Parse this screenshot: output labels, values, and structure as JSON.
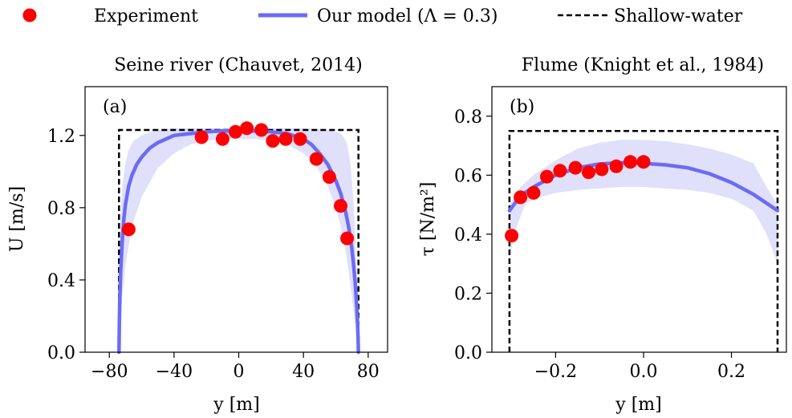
{
  "legend": {
    "experiment": "Experiment",
    "model": "Our model (Λ = 0.3)",
    "shallow": "Shallow-water"
  },
  "colors": {
    "experiment": "#ff0000",
    "model": "#6b6bf7",
    "band": "#e0e0fb",
    "shallow": "#000000"
  },
  "chart_data": [
    {
      "type": "scatter",
      "title": "Seine river (Chauvet, 2014)",
      "panel_label": "(a)",
      "xlabel": "y [m]",
      "ylabel": "U [m/s]",
      "xlim": [
        -95,
        92
      ],
      "ylim": [
        0,
        1.47
      ],
      "xticks": [
        -80,
        -40,
        0,
        40,
        80
      ],
      "xtick_labels": [
        "−80",
        "−40",
        "0",
        "40",
        "80"
      ],
      "yticks": [
        0,
        0.4,
        0.8,
        1.2
      ],
      "ytick_labels": [
        "0.0",
        "0.4",
        "0.8",
        "1.2"
      ],
      "grid": false,
      "series": [
        {
          "name": "Experiment",
          "kind": "points",
          "x": [
            -68,
            -23,
            -10,
            -2,
            5,
            14,
            21,
            29,
            38,
            48,
            56,
            63,
            67
          ],
          "y": [
            0.68,
            1.19,
            1.18,
            1.22,
            1.24,
            1.23,
            1.17,
            1.18,
            1.18,
            1.07,
            0.97,
            0.81,
            0.63
          ]
        },
        {
          "name": "Our model (Λ = 0.3)",
          "kind": "line",
          "x": [
            -74,
            -73.8,
            -73.5,
            -73,
            -72,
            -71,
            -70,
            -68,
            -66,
            -63,
            -60,
            -55,
            -50,
            -45,
            -40,
            -30,
            -20,
            -10,
            0,
            10,
            20,
            30,
            40,
            45,
            50,
            55,
            60,
            63,
            66,
            68,
            70,
            71,
            72,
            73,
            73.5,
            73.8,
            74
          ],
          "y": [
            0,
            0.15,
            0.3,
            0.45,
            0.62,
            0.74,
            0.82,
            0.92,
            0.98,
            1.04,
            1.08,
            1.13,
            1.16,
            1.18,
            1.2,
            1.21,
            1.22,
            1.225,
            1.225,
            1.225,
            1.22,
            1.21,
            1.18,
            1.15,
            1.1,
            1.04,
            0.95,
            0.88,
            0.78,
            0.69,
            0.57,
            0.48,
            0.38,
            0.24,
            0.15,
            0.07,
            0
          ]
        },
        {
          "name": "model band upper",
          "kind": "band_upper",
          "x": [
            -74,
            -73.7,
            -73,
            -72,
            -70,
            -68,
            -65,
            -60,
            -55,
            -50,
            -40,
            -30,
            -20,
            -10,
            0,
            10,
            20,
            30,
            40,
            50,
            55,
            60,
            63,
            65,
            67,
            69,
            70,
            71,
            72,
            73,
            73.7,
            74
          ],
          "y": [
            0,
            0.5,
            0.78,
            0.92,
            1.05,
            1.12,
            1.17,
            1.2,
            1.22,
            1.23,
            1.24,
            1.24,
            1.24,
            1.24,
            1.24,
            1.24,
            1.24,
            1.24,
            1.24,
            1.235,
            1.23,
            1.22,
            1.21,
            1.19,
            1.15,
            1.05,
            0.95,
            0.82,
            0.65,
            0.4,
            0.12,
            0
          ]
        },
        {
          "name": "model band lower",
          "kind": "band_lower",
          "x": [
            -74,
            -73.8,
            -73,
            -72,
            -70,
            -66,
            -60,
            -50,
            -40,
            -30,
            -20,
            -10,
            0,
            10,
            20,
            30,
            40,
            45,
            50,
            55,
            60,
            63,
            66,
            68,
            70,
            71,
            72,
            73,
            73.8,
            74
          ],
          "y": [
            0,
            0.05,
            0.18,
            0.3,
            0.48,
            0.7,
            0.86,
            1.02,
            1.1,
            1.15,
            1.17,
            1.18,
            1.18,
            1.18,
            1.17,
            1.15,
            1.1,
            1.06,
            1.0,
            0.92,
            0.8,
            0.7,
            0.56,
            0.44,
            0.3,
            0.22,
            0.15,
            0.07,
            0.02,
            0
          ]
        },
        {
          "name": "Shallow-water",
          "kind": "dashed",
          "x": [
            -74,
            -74,
            74,
            74
          ],
          "y": [
            0,
            1.23,
            1.23,
            0
          ]
        }
      ]
    },
    {
      "type": "scatter",
      "title": "Flume (Knight et al., 1984)",
      "panel_label": "(b)",
      "xlabel": "y [m]",
      "ylabel": "τ [N/m²]",
      "xlim": [
        -0.345,
        0.325
      ],
      "ylim": [
        0,
        0.9
      ],
      "xticks": [
        -0.2,
        0,
        0.2
      ],
      "xtick_labels": [
        "−0.2",
        "0.0",
        "0.2"
      ],
      "yticks": [
        0,
        0.2,
        0.4,
        0.6,
        0.8
      ],
      "ytick_labels": [
        "0.0",
        "0.2",
        "0.4",
        "0.6",
        "0.8"
      ],
      "grid": false,
      "series": [
        {
          "name": "Experiment",
          "kind": "points",
          "x": [
            -0.3,
            -0.28,
            -0.25,
            -0.22,
            -0.19,
            -0.155,
            -0.125,
            -0.095,
            -0.062,
            -0.03,
            0.0
          ],
          "y": [
            0.395,
            0.525,
            0.54,
            0.595,
            0.615,
            0.625,
            0.61,
            0.62,
            0.63,
            0.645,
            0.645
          ]
        },
        {
          "name": "Our model (Λ = 0.3)",
          "kind": "line",
          "x": [
            -0.305,
            -0.28,
            -0.25,
            -0.2,
            -0.15,
            -0.1,
            -0.05,
            0,
            0.05,
            0.1,
            0.15,
            0.2,
            0.25,
            0.305
          ],
          "y": [
            0.48,
            0.53,
            0.56,
            0.6,
            0.625,
            0.638,
            0.642,
            0.64,
            0.635,
            0.625,
            0.605,
            0.575,
            0.535,
            0.48
          ]
        },
        {
          "name": "model band upper",
          "kind": "band_upper",
          "x": [
            -0.305,
            -0.28,
            -0.25,
            -0.2,
            -0.15,
            -0.1,
            -0.05,
            0,
            0.05,
            0.1,
            0.15,
            0.2,
            0.25,
            0.28,
            0.305
          ],
          "y": [
            0.5,
            0.56,
            0.6,
            0.65,
            0.69,
            0.71,
            0.72,
            0.72,
            0.715,
            0.705,
            0.69,
            0.67,
            0.64,
            0.56,
            0.5
          ]
        },
        {
          "name": "model band lower",
          "kind": "band_lower",
          "x": [
            -0.305,
            -0.29,
            -0.27,
            -0.25,
            -0.2,
            -0.15,
            -0.1,
            -0.05,
            0,
            0.05,
            0.1,
            0.15,
            0.2,
            0.25,
            0.28,
            0.305
          ],
          "y": [
            0.32,
            0.42,
            0.5,
            0.52,
            0.54,
            0.55,
            0.555,
            0.56,
            0.56,
            0.555,
            0.55,
            0.54,
            0.52,
            0.48,
            0.4,
            0.3
          ]
        },
        {
          "name": "Shallow-water",
          "kind": "dashed",
          "x": [
            -0.305,
            -0.305,
            0.305,
            0.305
          ],
          "y": [
            0,
            0.75,
            0.75,
            0
          ]
        }
      ]
    }
  ]
}
